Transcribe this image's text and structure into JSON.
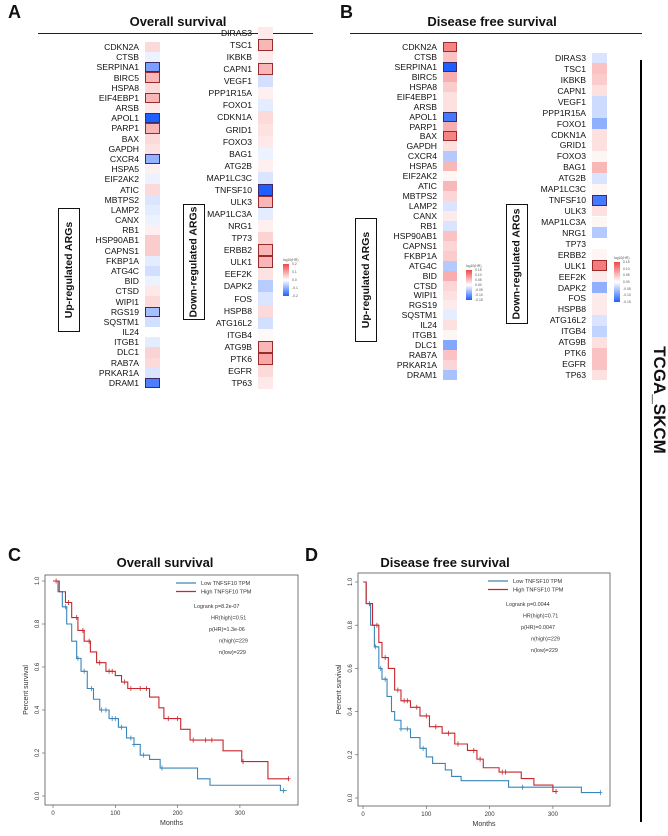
{
  "panels": {
    "A": {
      "letter": "A",
      "title": "Overall survival"
    },
    "B": {
      "letter": "B",
      "title": "Disease free survival"
    },
    "C": {
      "letter": "C",
      "title": "Overall survival"
    },
    "D": {
      "letter": "D",
      "title": "Disease free survival"
    }
  },
  "group_labels": {
    "up": "Up-regulated ARGs",
    "down": "Down-regulated ARGs"
  },
  "side_label": "TCGA_SKCM",
  "colors": {
    "low": "#1f5fff",
    "mid": "#ffffff",
    "high": "#f04848",
    "km_low": "#3a86b8",
    "km_high": "#c8262c"
  },
  "chart_data": [
    {
      "type": "heatmap",
      "panel": "A",
      "metric_label": "log10(HR)",
      "legend_ticks": [
        "0.2",
        "0.1",
        "0.0",
        "-0.1",
        "-0.2"
      ],
      "range": [
        -0.25,
        0.25
      ],
      "up": [
        [
          "CDKN2A",
          0.05,
          0
        ],
        [
          "CTSB",
          -0.02,
          0
        ],
        [
          "SERPINA1",
          -0.15,
          1
        ],
        [
          "BIRC5",
          0.1,
          1
        ],
        [
          "HSPA8",
          0.05,
          0
        ],
        [
          "EIF4EBP1",
          0.1,
          1
        ],
        [
          "ARSB",
          0.03,
          0
        ],
        [
          "APOL1",
          -0.25,
          1
        ],
        [
          "PARP1",
          0.1,
          1
        ],
        [
          "BAX",
          0.05,
          0
        ],
        [
          "GAPDH",
          0.04,
          0
        ],
        [
          "CXCR4",
          -0.12,
          1
        ],
        [
          "HSPA5",
          0.02,
          0
        ],
        [
          "EIF2AK2",
          -0.02,
          0
        ],
        [
          "ATIC",
          0.05,
          0
        ],
        [
          "MBTPS2",
          -0.04,
          0
        ],
        [
          "LAMP2",
          -0.03,
          0
        ],
        [
          "CANX",
          -0.02,
          0
        ],
        [
          "RB1",
          0.02,
          0
        ],
        [
          "HSP90AB1",
          0.07,
          0
        ],
        [
          "CAPNS1",
          0.07,
          0
        ],
        [
          "FKBP1A",
          -0.03,
          0
        ],
        [
          "ATG4C",
          -0.05,
          0
        ],
        [
          "BID",
          -0.02,
          0
        ],
        [
          "CTSD",
          0.03,
          0
        ],
        [
          "WIPI1",
          0.05,
          0
        ],
        [
          "RGS19",
          -0.1,
          1
        ],
        [
          "SQSTM1",
          -0.05,
          0
        ],
        [
          "IL24",
          0.0,
          0
        ],
        [
          "ITGB1",
          -0.03,
          0
        ],
        [
          "DLC1",
          0.06,
          0
        ],
        [
          "RAB7A",
          0.05,
          0
        ],
        [
          "PRKAR1A",
          -0.04,
          0
        ],
        [
          "DRAM1",
          -0.2,
          1
        ]
      ],
      "down": [
        [
          "DIRAS3",
          0.03,
          0
        ],
        [
          "TSC1",
          0.1,
          1
        ],
        [
          "IKBKB",
          0.03,
          0
        ],
        [
          "CAPN1",
          0.1,
          1
        ],
        [
          "VEGF1",
          -0.05,
          0
        ],
        [
          "PPP1R15A",
          0.02,
          0
        ],
        [
          "FOXO1",
          -0.03,
          0
        ],
        [
          "CDKN1A",
          0.05,
          0
        ],
        [
          "GRID1",
          0.04,
          0
        ],
        [
          "FOXO3",
          0.03,
          0
        ],
        [
          "BAG1",
          -0.02,
          0
        ],
        [
          "ATG2B",
          0.02,
          0
        ],
        [
          "MAP1LC3C",
          -0.04,
          0
        ],
        [
          "TNFSF10",
          -0.25,
          1
        ],
        [
          "ULK3",
          0.1,
          1
        ],
        [
          "MAP1LC3A",
          -0.03,
          0
        ],
        [
          "NRG1",
          0.02,
          0
        ],
        [
          "TP73",
          0.06,
          0
        ],
        [
          "ERBB2",
          0.1,
          1
        ],
        [
          "ULK1",
          0.1,
          1
        ],
        [
          "EEF2K",
          0.04,
          0
        ],
        [
          "DAPK2",
          -0.08,
          0
        ],
        [
          "FOS",
          -0.04,
          0
        ],
        [
          "HSPB8",
          0.05,
          0
        ],
        [
          "ATG16L2",
          -0.05,
          0
        ],
        [
          "ITGB4",
          0.01,
          0
        ],
        [
          "ATG9B",
          0.1,
          1
        ],
        [
          "PTK6",
          0.12,
          1
        ],
        [
          "EGFR",
          0.05,
          0
        ],
        [
          "TP63",
          0.03,
          0
        ]
      ]
    },
    {
      "type": "heatmap",
      "panel": "B",
      "metric_label": "log10(HR)",
      "legend_ticks": [
        "0.15",
        "0.10",
        "0.05",
        "0.00",
        "-0.05",
        "-0.10",
        "-0.15"
      ],
      "range": [
        -0.18,
        0.18
      ],
      "up": [
        [
          "CDKN2A",
          0.12,
          1
        ],
        [
          "CTSB",
          0.06,
          0
        ],
        [
          "SERPINA1",
          -0.18,
          1
        ],
        [
          "BIRC5",
          0.08,
          0
        ],
        [
          "HSPA8",
          0.05,
          0
        ],
        [
          "EIF4EBP1",
          0.03,
          0
        ],
        [
          "ARSB",
          0.03,
          0
        ],
        [
          "APOL1",
          -0.15,
          1
        ],
        [
          "PARP1",
          0.08,
          0
        ],
        [
          "BAX",
          0.12,
          1
        ],
        [
          "GAPDH",
          0.03,
          0
        ],
        [
          "CXCR4",
          -0.06,
          0
        ],
        [
          "HSPA5",
          0.07,
          0
        ],
        [
          "EIF2AK2",
          0.01,
          0
        ],
        [
          "ATIC",
          0.07,
          0
        ],
        [
          "MBTPS2",
          0.04,
          0
        ],
        [
          "LAMP2",
          -0.03,
          0
        ],
        [
          "CANX",
          0.02,
          0
        ],
        [
          "RB1",
          -0.03,
          0
        ],
        [
          "HSP90AB1",
          0.06,
          0
        ],
        [
          "CAPNS1",
          0.04,
          0
        ],
        [
          "FKBP1A",
          0.05,
          0
        ],
        [
          "ATG4C",
          -0.06,
          0
        ],
        [
          "BID",
          0.08,
          0
        ],
        [
          "CTSD",
          0.04,
          0
        ],
        [
          "WIPI1",
          0.03,
          0
        ],
        [
          "RGS19",
          0.02,
          0
        ],
        [
          "SQSTM1",
          -0.02,
          0
        ],
        [
          "IL24",
          0.03,
          0
        ],
        [
          "ITGB1",
          0.01,
          0
        ],
        [
          "DLC1",
          -0.1,
          0
        ],
        [
          "RAB7A",
          0.06,
          0
        ],
        [
          "PRKAR1A",
          0.04,
          0
        ],
        [
          "DRAM1",
          -0.07,
          0
        ]
      ],
      "down": [
        [
          "DIRAS3",
          -0.03,
          0
        ],
        [
          "TSC1",
          0.06,
          0
        ],
        [
          "IKBKB",
          0.05,
          0
        ],
        [
          "CAPN1",
          0.03,
          0
        ],
        [
          "VEGF1",
          -0.04,
          0
        ],
        [
          "PPP1R15A",
          -0.04,
          0
        ],
        [
          "FOXO1",
          -0.09,
          0
        ],
        [
          "CDKN1A",
          0.03,
          0
        ],
        [
          "GRID1",
          0.03,
          0
        ],
        [
          "FOXO3",
          0.01,
          0
        ],
        [
          "BAG1",
          0.07,
          0
        ],
        [
          "ATG2B",
          -0.03,
          0
        ],
        [
          "MAP1LC3C",
          0.01,
          0
        ],
        [
          "TNFSF10",
          -0.15,
          1
        ],
        [
          "ULK3",
          0.03,
          0
        ],
        [
          "MAP1LC3A",
          0.01,
          0
        ],
        [
          "NRG1",
          -0.06,
          0
        ],
        [
          "TP73",
          0.0,
          0
        ],
        [
          "ERBB2",
          0.01,
          0
        ],
        [
          "ULK1",
          0.13,
          1
        ],
        [
          "EEF2K",
          0.02,
          0
        ],
        [
          "DAPK2",
          -0.09,
          0
        ],
        [
          "FOS",
          0.02,
          0
        ],
        [
          "HSPB8",
          0.02,
          0
        ],
        [
          "ATG16L2",
          -0.03,
          0
        ],
        [
          "ITGB4",
          -0.05,
          0
        ],
        [
          "ATG9B",
          0.03,
          0
        ],
        [
          "PTK6",
          0.06,
          0
        ],
        [
          "EGFR",
          0.06,
          0
        ],
        [
          "TP63",
          0.03,
          0
        ]
      ]
    },
    {
      "type": "line",
      "panel": "C",
      "xlabel": "Months",
      "ylabel": "Percent survival",
      "xlim": [
        0,
        380
      ],
      "ylim": [
        0,
        1
      ],
      "xticks": [
        "0",
        "100",
        "200",
        "300"
      ],
      "yticks": [
        "0.0",
        "0.2",
        "0.4",
        "0.6",
        "0.8",
        "1.0"
      ],
      "legend": "top-right",
      "stats": [
        "Logrank p=8.2e-07",
        "HR(high)=0.51",
        "p(HR)=1.3e-06",
        "n(high)=229",
        "n(low)=229"
      ],
      "series": [
        {
          "name": "Low TNFSF10 TPM",
          "steps": [
            [
              0,
              1
            ],
            [
              8,
              0.95
            ],
            [
              15,
              0.88
            ],
            [
              22,
              0.8
            ],
            [
              30,
              0.72
            ],
            [
              38,
              0.64
            ],
            [
              45,
              0.58
            ],
            [
              55,
              0.5
            ],
            [
              65,
              0.45
            ],
            [
              75,
              0.4
            ],
            [
              90,
              0.36
            ],
            [
              105,
              0.32
            ],
            [
              118,
              0.27
            ],
            [
              130,
              0.24
            ],
            [
              140,
              0.19
            ],
            [
              155,
              0.17
            ],
            [
              172,
              0.13
            ],
            [
              232,
              0.08
            ],
            [
              252,
              0.05
            ],
            [
              365,
              0.025
            ]
          ],
          "end": 375,
          "censor": [
            20,
            40,
            50,
            62,
            78,
            85,
            95,
            100,
            110,
            125,
            130,
            145,
            175,
            370
          ]
        },
        {
          "name": "High TNFSF10 TPM",
          "steps": [
            [
              0,
              1
            ],
            [
              10,
              0.95
            ],
            [
              20,
              0.9
            ],
            [
              30,
              0.83
            ],
            [
              40,
              0.77
            ],
            [
              50,
              0.72
            ],
            [
              60,
              0.67
            ],
            [
              70,
              0.62
            ],
            [
              85,
              0.58
            ],
            [
              100,
              0.56
            ],
            [
              110,
              0.53
            ],
            [
              120,
              0.5
            ],
            [
              155,
              0.46
            ],
            [
              170,
              0.41
            ],
            [
              178,
              0.36
            ],
            [
              205,
              0.31
            ],
            [
              220,
              0.26
            ],
            [
              273,
              0.21
            ],
            [
              303,
              0.16
            ],
            [
              345,
              0.08
            ]
          ],
          "end": 378,
          "censor": [
            5,
            25,
            38,
            48,
            58,
            75,
            90,
            95,
            115,
            125,
            140,
            150,
            185,
            200,
            225,
            245,
            255,
            305,
            378
          ]
        }
      ]
    },
    {
      "type": "line",
      "panel": "D",
      "xlabel": "Months",
      "ylabel": "Percent survival",
      "xlim": [
        0,
        380
      ],
      "ylim": [
        0,
        1
      ],
      "xticks": [
        "0",
        "100",
        "200",
        "300"
      ],
      "yticks": [
        "0.0",
        "0.2",
        "0.4",
        "0.6",
        "0.8",
        "1.0"
      ],
      "legend": "top-right",
      "stats": [
        "Logrank p=0.0044",
        "HR(high)=0.71",
        "p(HR)=0.0047",
        "n(high)=229",
        "n(low)=229"
      ],
      "series": [
        {
          "name": "Low TNFSF10 TPM",
          "steps": [
            [
              0,
              1
            ],
            [
              5,
              0.9
            ],
            [
              12,
              0.8
            ],
            [
              18,
              0.7
            ],
            [
              25,
              0.6
            ],
            [
              30,
              0.55
            ],
            [
              38,
              0.47
            ],
            [
              45,
              0.4
            ],
            [
              50,
              0.36
            ],
            [
              60,
              0.32
            ],
            [
              75,
              0.28
            ],
            [
              90,
              0.23
            ],
            [
              100,
              0.19
            ],
            [
              110,
              0.16
            ],
            [
              130,
              0.13
            ],
            [
              140,
              0.1
            ],
            [
              155,
              0.08
            ],
            [
              230,
              0.05
            ],
            [
              345,
              0.025
            ]
          ],
          "end": 375,
          "censor": [
            20,
            28,
            35,
            60,
            70,
            95,
            252,
            375
          ]
        },
        {
          "name": "High TNFSF10 TPM",
          "steps": [
            [
              0,
              1
            ],
            [
              5,
              0.9
            ],
            [
              15,
              0.8
            ],
            [
              25,
              0.72
            ],
            [
              30,
              0.65
            ],
            [
              40,
              0.6
            ],
            [
              50,
              0.5
            ],
            [
              60,
              0.45
            ],
            [
              75,
              0.42
            ],
            [
              90,
              0.38
            ],
            [
              105,
              0.33
            ],
            [
              125,
              0.3
            ],
            [
              145,
              0.25
            ],
            [
              165,
              0.22
            ],
            [
              180,
              0.18
            ],
            [
              190,
              0.14
            ],
            [
              215,
              0.12
            ],
            [
              250,
              0.09
            ],
            [
              270,
              0.06
            ],
            [
              300,
              0.03
            ]
          ],
          "end": 305,
          "censor": [
            10,
            22,
            35,
            55,
            65,
            70,
            85,
            100,
            115,
            135,
            150,
            175,
            185,
            220,
            225,
            305
          ]
        }
      ]
    }
  ]
}
